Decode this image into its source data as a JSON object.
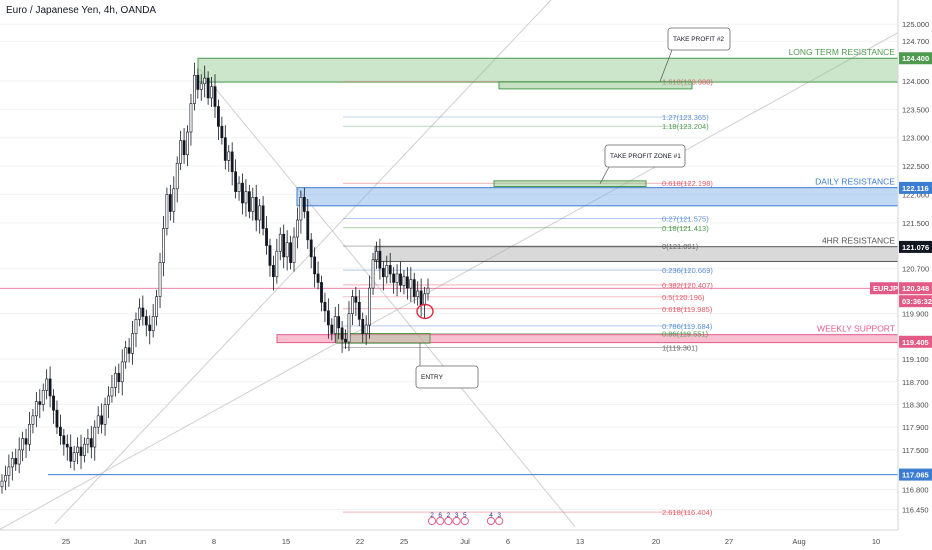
{
  "header": {
    "title": "Euro / Japanese Yen, 4h, OANDA"
  },
  "colors": {
    "up": "#131722",
    "down": "#131722",
    "resistance_green": "#8bc78a",
    "daily_blue": "#9dc1ec",
    "weekly_pink": "#f3a1b6",
    "hr4_gray": "#b5b5b5",
    "fib_blue": "#6fa8dc",
    "fib_red": "#e35a6a",
    "fib_green": "#4f9a4f"
  },
  "chart_data": {
    "type": "candlestick",
    "symbol": "EURJPY",
    "y_axis": {
      "range": [
        116.3,
        125.25
      ],
      "ticks": [
        "125.000",
        "124.700",
        "124.000",
        "123.500",
        "123.000",
        "122.500",
        "122.000",
        "121.500",
        "120.700",
        "119.900",
        "119.100",
        "118.700",
        "118.300",
        "117.900",
        "117.500",
        "116.800",
        "116.450"
      ]
    },
    "x_axis": {
      "ticks": [
        "25",
        "Jun",
        "8",
        "15",
        "22",
        "25",
        "Jul",
        "6",
        "13",
        "20",
        "27",
        "Aug",
        "10"
      ]
    },
    "price_close": [
      116.95,
      117.05,
      117.2,
      117.35,
      117.25,
      117.5,
      117.7,
      117.6,
      117.95,
      118.1,
      118.35,
      118.3,
      118.55,
      118.75,
      118.45,
      118.2,
      117.9,
      117.75,
      117.6,
      117.55,
      117.3,
      117.45,
      117.55,
      117.4,
      117.6,
      117.7,
      117.55,
      117.9,
      118.1,
      117.95,
      118.3,
      118.45,
      118.6,
      118.85,
      118.7,
      119.05,
      119.3,
      119.2,
      119.55,
      119.8,
      120.0,
      119.85,
      119.7,
      119.6,
      119.85,
      120.2,
      120.8,
      121.4,
      122.0,
      121.7,
      122.1,
      122.55,
      122.95,
      122.7,
      123.1,
      123.6,
      124.1,
      123.85,
      123.95,
      124.05,
      123.7,
      123.9,
      123.55,
      123.2,
      123.0,
      122.6,
      122.75,
      122.4,
      122.05,
      122.2,
      121.85,
      122.05,
      121.7,
      121.95,
      121.55,
      121.8,
      121.4,
      121.1,
      120.75,
      120.55,
      121.0,
      121.3,
      120.9,
      121.15,
      120.8,
      121.25,
      121.55,
      121.95,
      121.7,
      121.2,
      120.9,
      120.6,
      120.45,
      120.1,
      119.95,
      119.7,
      119.55,
      119.85,
      119.65,
      119.45,
      119.4,
      119.9,
      120.2,
      120.1,
      119.8,
      119.55,
      119.7,
      120.35,
      120.85,
      121.0,
      120.7,
      120.55,
      120.75,
      120.6,
      120.45,
      120.6,
      120.4,
      120.55,
      120.35,
      120.5,
      120.2,
      120.3,
      120.05,
      120.25,
      120.35
    ],
    "zones": [
      {
        "label": "LONG TERM RESISTANCE",
        "price_label": "124.400",
        "top": 124.4,
        "bottom": 123.98,
        "color": "green"
      },
      {
        "label": "DAILY RESISTANCE",
        "price_label": "122.116",
        "top": 122.12,
        "bottom": 121.8,
        "color": "blue"
      },
      {
        "label": "4HR RESISTANCE",
        "price_label": "121.076",
        "top": 121.08,
        "bottom": 120.82,
        "color": "gray"
      },
      {
        "label": "WEEKLY SUPPORT",
        "price_label": "119.405",
        "top": 119.53,
        "bottom": 119.39,
        "color": "pink"
      }
    ],
    "fib_levels": [
      {
        "label": "1.618(123.988)",
        "value": 123.988,
        "color": "red"
      },
      {
        "label": "1.27(123.365)",
        "value": 123.365,
        "color": "blue"
      },
      {
        "label": "1.18(123.204)",
        "value": 123.204,
        "color": "green"
      },
      {
        "label": "0.618(122.198)",
        "value": 122.198,
        "color": "red"
      },
      {
        "label": "0.27(121.575)",
        "value": 121.575,
        "color": "blue"
      },
      {
        "label": "0.18(121.413)",
        "value": 121.413,
        "color": "green"
      },
      {
        "label": "0(121.091)",
        "value": 121.091,
        "color": "gray"
      },
      {
        "label": "0.236(120.669)",
        "value": 120.669,
        "color": "blue"
      },
      {
        "label": "0.382(120.407)",
        "value": 120.407,
        "color": "red"
      },
      {
        "label": "0.5(120.196)",
        "value": 120.196,
        "color": "red"
      },
      {
        "label": "0.618(119.985)",
        "value": 119.985,
        "color": "red"
      },
      {
        "label": "0.786(119.684)",
        "value": 119.684,
        "color": "blue"
      },
      {
        "label": "0.86(119.551)",
        "value": 119.551,
        "color": "green"
      },
      {
        "label": "1(119.301)",
        "value": 119.301,
        "color": "gray"
      },
      {
        "label": "2.618(116.404)",
        "value": 116.404,
        "color": "red"
      }
    ],
    "callouts": [
      {
        "label": "TAKE PROFIT #2"
      },
      {
        "label": "TAKE PROFIT ZONE #1"
      },
      {
        "label": "ENTRY"
      }
    ],
    "price_tags": [
      {
        "label": "124.400",
        "value": 124.4,
        "color": "green"
      },
      {
        "label": "122.116",
        "value": 122.116,
        "color": "blue"
      },
      {
        "label": "121.076",
        "value": 121.076,
        "color": "dark"
      },
      {
        "label": "EURJPY",
        "value": 120.348,
        "color": "red"
      },
      {
        "label": "120.348",
        "value": 120.348,
        "color": "red"
      },
      {
        "label": "03:36:32",
        "value": 120.12,
        "color": "red"
      },
      {
        "label": "119.405",
        "value": 119.405,
        "color": "pink"
      },
      {
        "label": "117.065",
        "value": 117.065,
        "color": "blue"
      }
    ],
    "events": [
      "2",
      "6",
      "2",
      "3",
      "5",
      "4",
      "3"
    ]
  }
}
